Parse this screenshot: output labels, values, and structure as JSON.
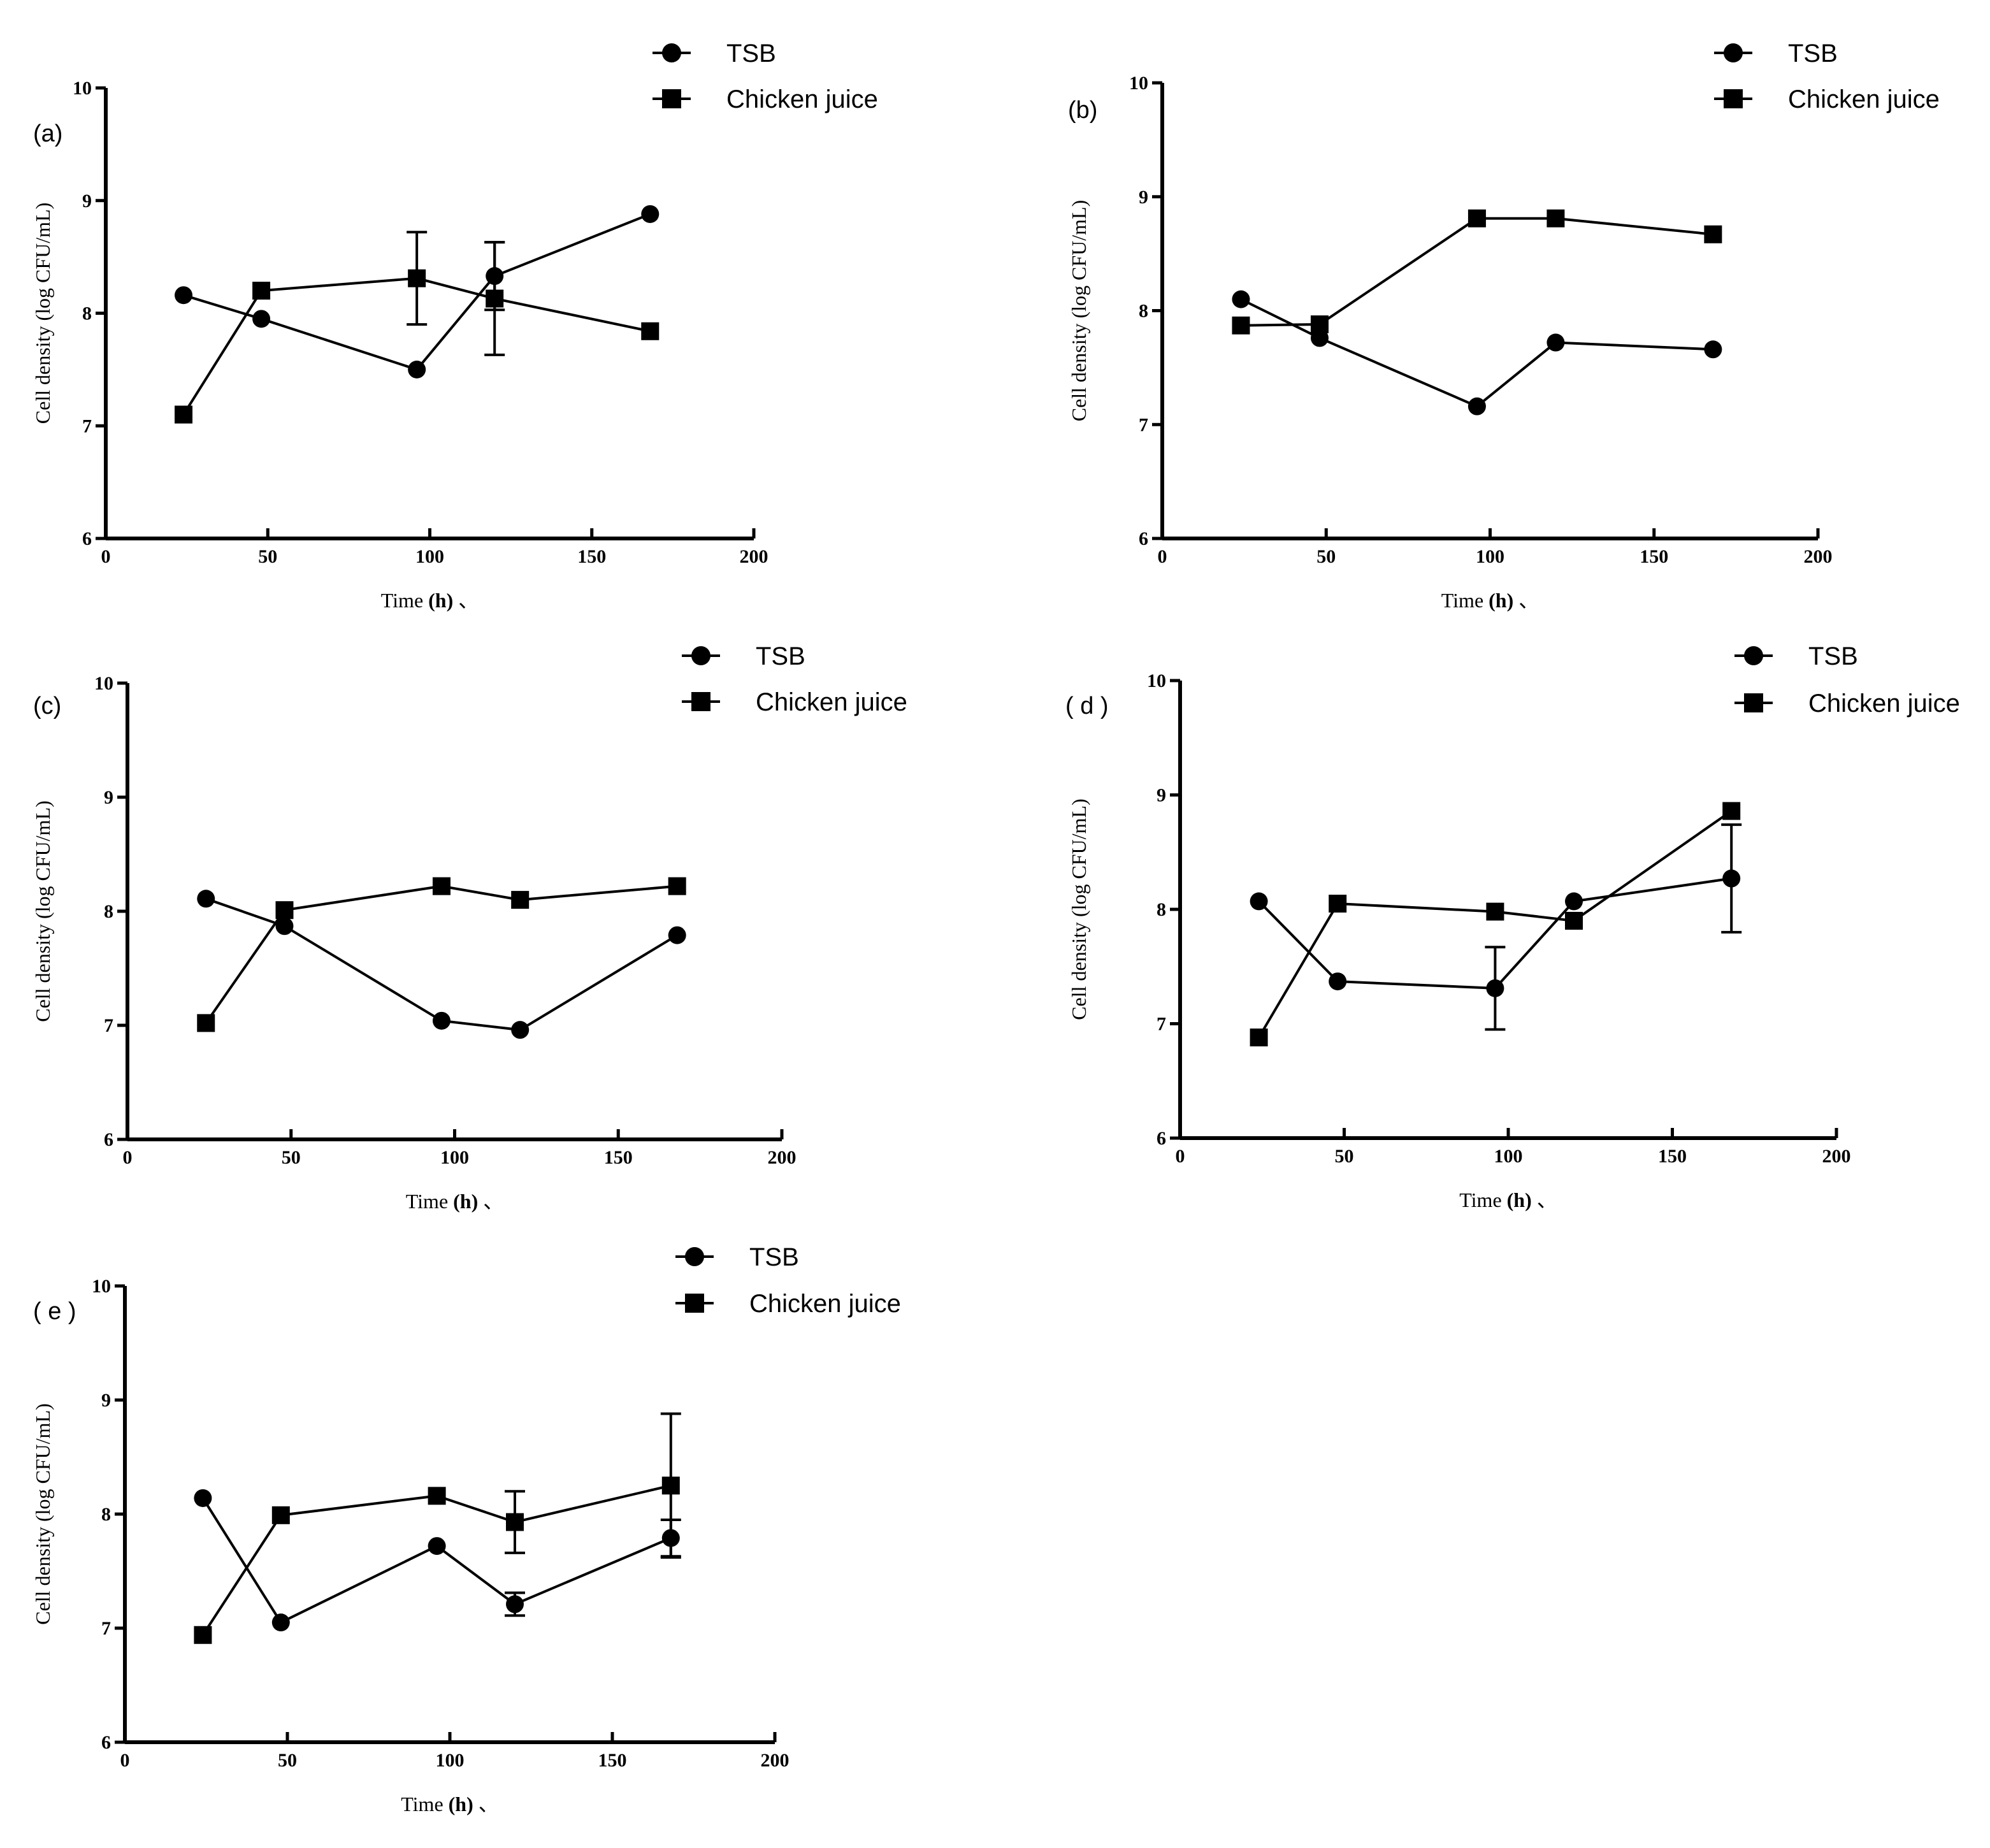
{
  "chart_data": [
    {
      "type": "line",
      "panel_label": "(a)",
      "xlabel": "Time",
      "xlabel_unit": "(h)",
      "xlabel_suffix": "、",
      "ylabel": "Cell density (log CFU/mL)",
      "xlim": [
        0,
        200
      ],
      "ylim": [
        6,
        10
      ],
      "xticks": [
        "0",
        "50",
        "100",
        "150",
        "200"
      ],
      "yticks": [
        "6",
        "7",
        "8",
        "9",
        "10"
      ],
      "legend": [
        "TSB",
        "Chicken juice"
      ],
      "series": [
        {
          "name": "TSB",
          "marker": "circle",
          "x": [
            24,
            48,
            96,
            120,
            168
          ],
          "y": [
            8.16,
            7.95,
            7.5,
            8.33,
            8.88
          ],
          "err": [
            0,
            0,
            0,
            0.3,
            0
          ]
        },
        {
          "name": "Chicken juice",
          "marker": "square",
          "x": [
            24,
            48,
            96,
            120,
            168
          ],
          "y": [
            7.1,
            8.2,
            8.31,
            8.13,
            7.84
          ],
          "err": [
            0,
            0,
            0.41,
            0.5,
            0
          ]
        }
      ]
    },
    {
      "type": "line",
      "panel_label": "(b)",
      "xlabel": "Time",
      "xlabel_unit": "(h)",
      "xlabel_suffix": "、",
      "ylabel": "Cell density (log CFU/mL)",
      "xlim": [
        0,
        200
      ],
      "ylim": [
        6,
        10
      ],
      "xticks": [
        "0",
        "50",
        "100",
        "150",
        "200"
      ],
      "yticks": [
        "6",
        "7",
        "8",
        "9",
        "10"
      ],
      "legend": [
        "TSB",
        "Chicken juice"
      ],
      "series": [
        {
          "name": "TSB",
          "marker": "circle",
          "x": [
            24,
            48,
            96,
            120,
            168
          ],
          "y": [
            8.1,
            7.76,
            7.16,
            7.72,
            7.66
          ],
          "err": [
            0,
            0,
            0,
            0,
            0
          ]
        },
        {
          "name": "Chicken juice",
          "marker": "square",
          "x": [
            24,
            48,
            96,
            120,
            168
          ],
          "y": [
            7.87,
            7.88,
            8.81,
            8.81,
            8.67
          ],
          "err": [
            0,
            0,
            0,
            0,
            0
          ]
        }
      ]
    },
    {
      "type": "line",
      "panel_label": "(c)",
      "xlabel": "Time",
      "xlabel_unit": "(h)",
      "xlabel_suffix": "、",
      "ylabel": "Cell density (log CFU/mL)",
      "xlim": [
        0,
        200
      ],
      "ylim": [
        6,
        10
      ],
      "xticks": [
        "0",
        "50",
        "100",
        "150",
        "200"
      ],
      "yticks": [
        "6",
        "7",
        "8",
        "9",
        "10"
      ],
      "legend": [
        "TSB",
        "Chicken juice"
      ],
      "series": [
        {
          "name": "TSB",
          "marker": "circle",
          "x": [
            24,
            48,
            96,
            120,
            168
          ],
          "y": [
            8.11,
            7.87,
            7.04,
            6.96,
            7.79
          ],
          "err": [
            0,
            0,
            0,
            0,
            0
          ]
        },
        {
          "name": "Chicken juice",
          "marker": "square",
          "x": [
            24,
            48,
            96,
            120,
            168
          ],
          "y": [
            7.02,
            8.01,
            8.22,
            8.1,
            8.22
          ],
          "err": [
            0,
            0,
            0,
            0,
            0
          ]
        }
      ]
    },
    {
      "type": "line",
      "panel_label": "( d )",
      "xlabel": "Time",
      "xlabel_unit": "(h)",
      "xlabel_suffix": "、",
      "ylabel": "Cell density (log CFU/mL)",
      "xlim": [
        0,
        200
      ],
      "ylim": [
        6,
        10
      ],
      "xticks": [
        "0",
        "50",
        "100",
        "150",
        "200"
      ],
      "yticks": [
        "6",
        "7",
        "8",
        "9",
        "10"
      ],
      "legend": [
        "TSB",
        "Chicken juice"
      ],
      "series": [
        {
          "name": "TSB",
          "marker": "circle",
          "x": [
            24,
            48,
            96,
            120,
            168
          ],
          "y": [
            8.07,
            7.37,
            7.31,
            8.07,
            8.27
          ],
          "err": [
            0,
            0,
            0.36,
            0,
            0.47
          ]
        },
        {
          "name": "Chicken juice",
          "marker": "square",
          "x": [
            24,
            48,
            96,
            120,
            168
          ],
          "y": [
            6.88,
            8.05,
            7.98,
            7.9,
            8.86
          ],
          "err": [
            0,
            0,
            0,
            0,
            0
          ]
        }
      ]
    },
    {
      "type": "line",
      "panel_label": "( e )",
      "xlabel": "Time",
      "xlabel_unit": "(h)",
      "xlabel_suffix": "、",
      "ylabel": "Cell density (log CFU/mL)",
      "xlim": [
        0,
        200
      ],
      "ylim": [
        6,
        10
      ],
      "xticks": [
        "0",
        "50",
        "100",
        "150",
        "200"
      ],
      "yticks": [
        "6",
        "7",
        "8",
        "9",
        "10"
      ],
      "legend": [
        "TSB",
        "Chicken juice"
      ],
      "series": [
        {
          "name": "TSB",
          "marker": "circle",
          "x": [
            24,
            48,
            96,
            120,
            168
          ],
          "y": [
            8.14,
            7.05,
            7.72,
            7.21,
            7.79
          ],
          "err": [
            0,
            0,
            0,
            0.1,
            0.16
          ]
        },
        {
          "name": "Chicken juice",
          "marker": "square",
          "x": [
            24,
            48,
            96,
            120,
            168
          ],
          "y": [
            6.94,
            7.99,
            8.16,
            7.93,
            8.25
          ],
          "err": [
            0,
            0,
            0,
            0.27,
            0.63
          ]
        }
      ]
    }
  ]
}
